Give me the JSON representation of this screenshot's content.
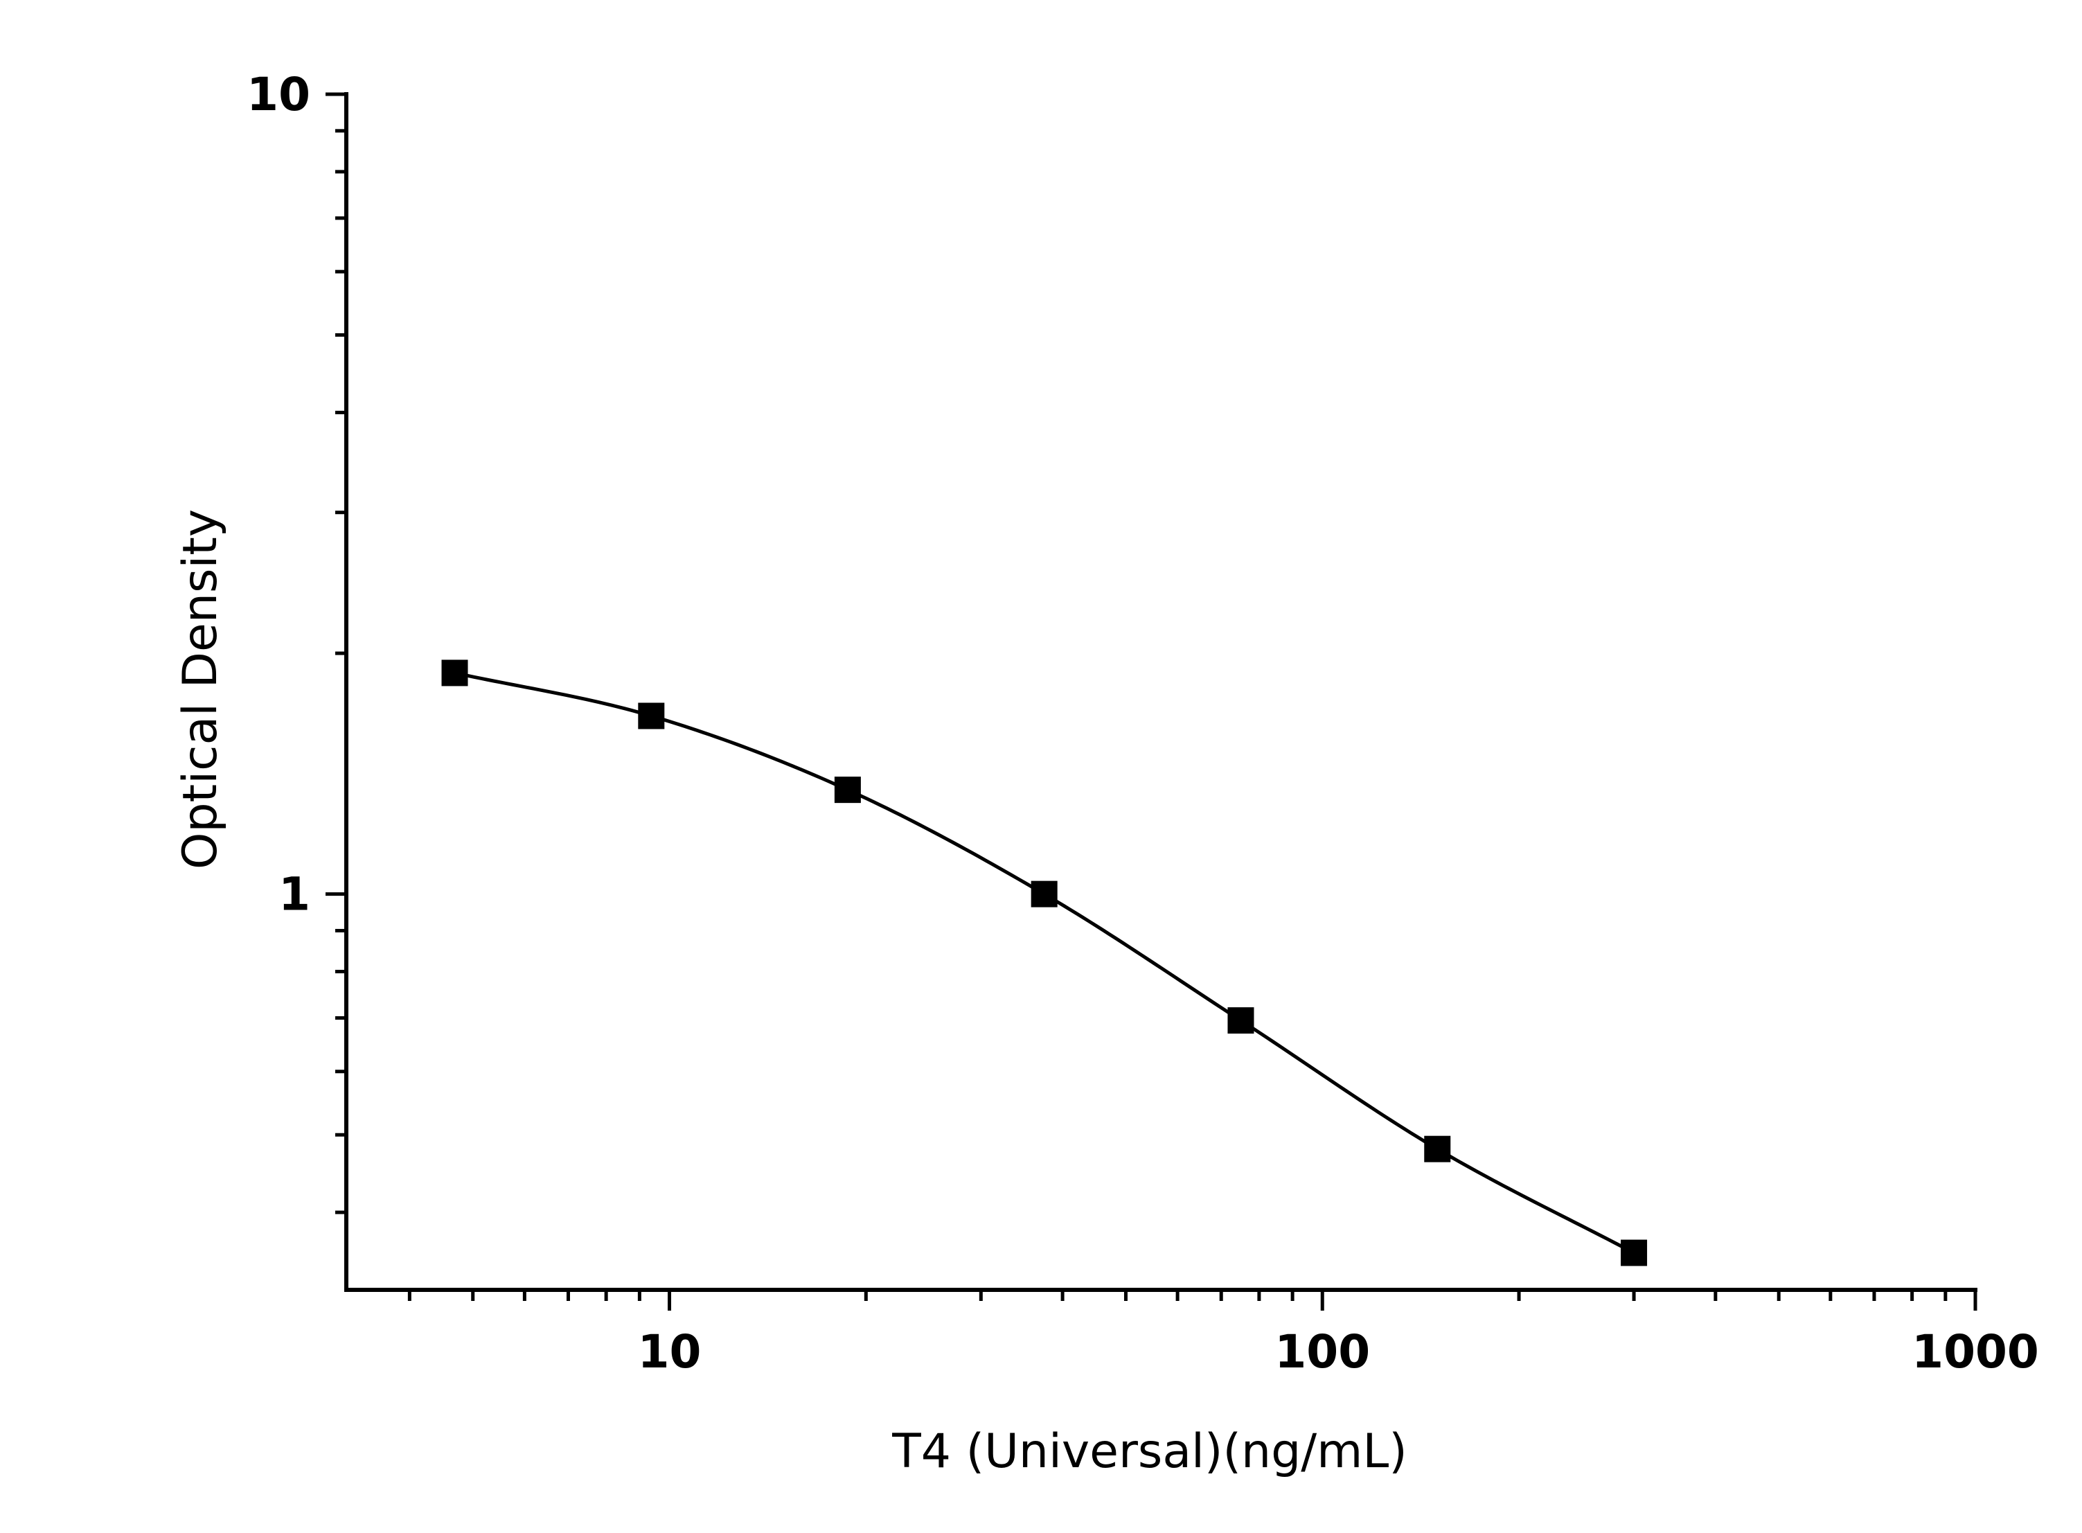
{
  "chart_data": {
    "type": "scatter",
    "title": "",
    "xlabel": "T4 (Universal)(ng/mL)",
    "ylabel": "Optical Density",
    "x_scale": "log",
    "y_scale": "log",
    "xlim": [
      3.2,
      1000
    ],
    "ylim": [
      0.32,
      10
    ],
    "x_tick_labels": [
      "10",
      "100",
      "1000"
    ],
    "y_tick_labels": [
      "1",
      "10"
    ],
    "grid": false,
    "legend": "none",
    "series": [
      {
        "x": [
          4.69,
          9.38,
          18.75,
          37.5,
          75,
          150,
          300
        ],
        "y": [
          1.89,
          1.67,
          1.35,
          1.0,
          0.695,
          0.48,
          0.356
        ],
        "marker": "square",
        "fit_curve": true
      }
    ],
    "colors": {
      "axis": "#000000",
      "marker": "#000000",
      "curve": "#000000"
    }
  }
}
